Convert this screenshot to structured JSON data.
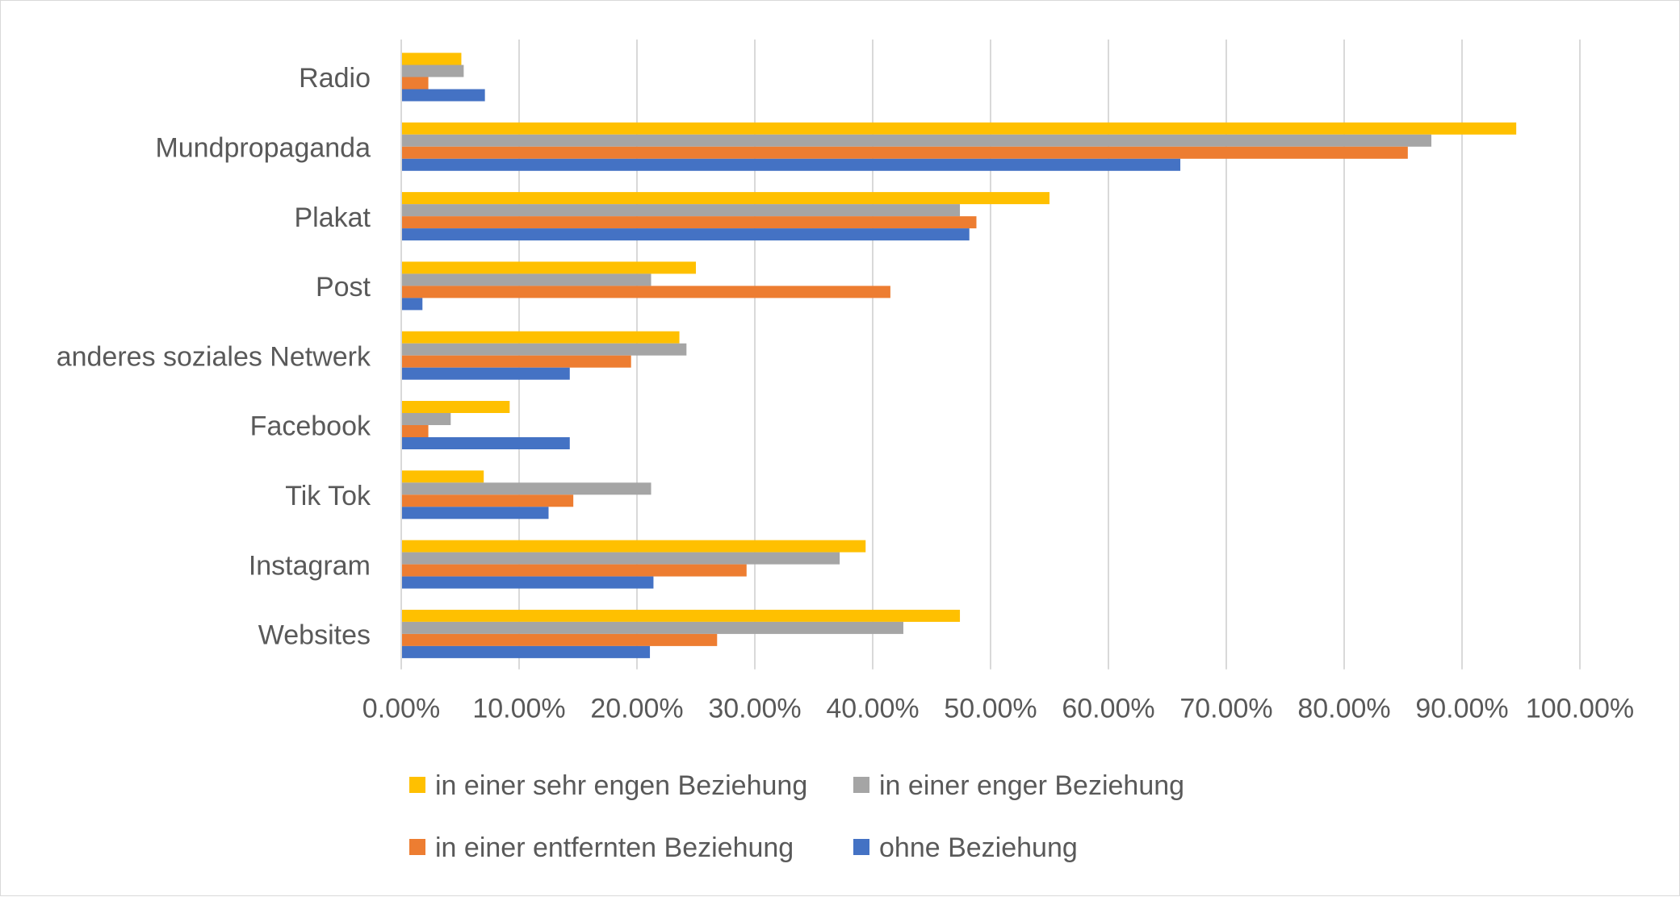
{
  "chart_data": {
    "type": "bar",
    "orientation": "horizontal",
    "categories": [
      "Radio",
      "Mundpropaganda",
      "Plakat",
      "Post",
      "anderes soziales Netwerk",
      "Facebook",
      "Tik Tok",
      "Instagram",
      "Websites"
    ],
    "series": [
      {
        "name": "in einer sehr engen Beziehung",
        "color": "#FFC000",
        "values": [
          5.1,
          94.6,
          55.0,
          25.0,
          23.6,
          9.2,
          7.0,
          39.4,
          47.4
        ]
      },
      {
        "name": "in einer enger Beziehung",
        "color": "#A5A5A5",
        "values": [
          5.3,
          87.4,
          47.4,
          21.2,
          24.2,
          4.2,
          21.2,
          37.2,
          42.6
        ]
      },
      {
        "name": "in einer entfernten Beziehung",
        "color": "#ED7D31",
        "values": [
          2.3,
          85.4,
          48.8,
          41.5,
          19.5,
          2.3,
          14.6,
          29.3,
          26.8
        ]
      },
      {
        "name": "ohne Beziehung",
        "color": "#4472C4",
        "values": [
          7.1,
          66.1,
          48.2,
          1.8,
          14.3,
          14.3,
          12.5,
          21.4,
          21.1
        ]
      }
    ],
    "x_ticks": [
      "0.00%",
      "10.00%",
      "20.00%",
      "30.00%",
      "40.00%",
      "50.00%",
      "60.00%",
      "70.00%",
      "80.00%",
      "90.00%",
      "100.00%"
    ],
    "xlim": [
      0,
      100
    ],
    "grid": true,
    "legend_position": "bottom",
    "title": "",
    "xlabel": "",
    "ylabel": ""
  }
}
